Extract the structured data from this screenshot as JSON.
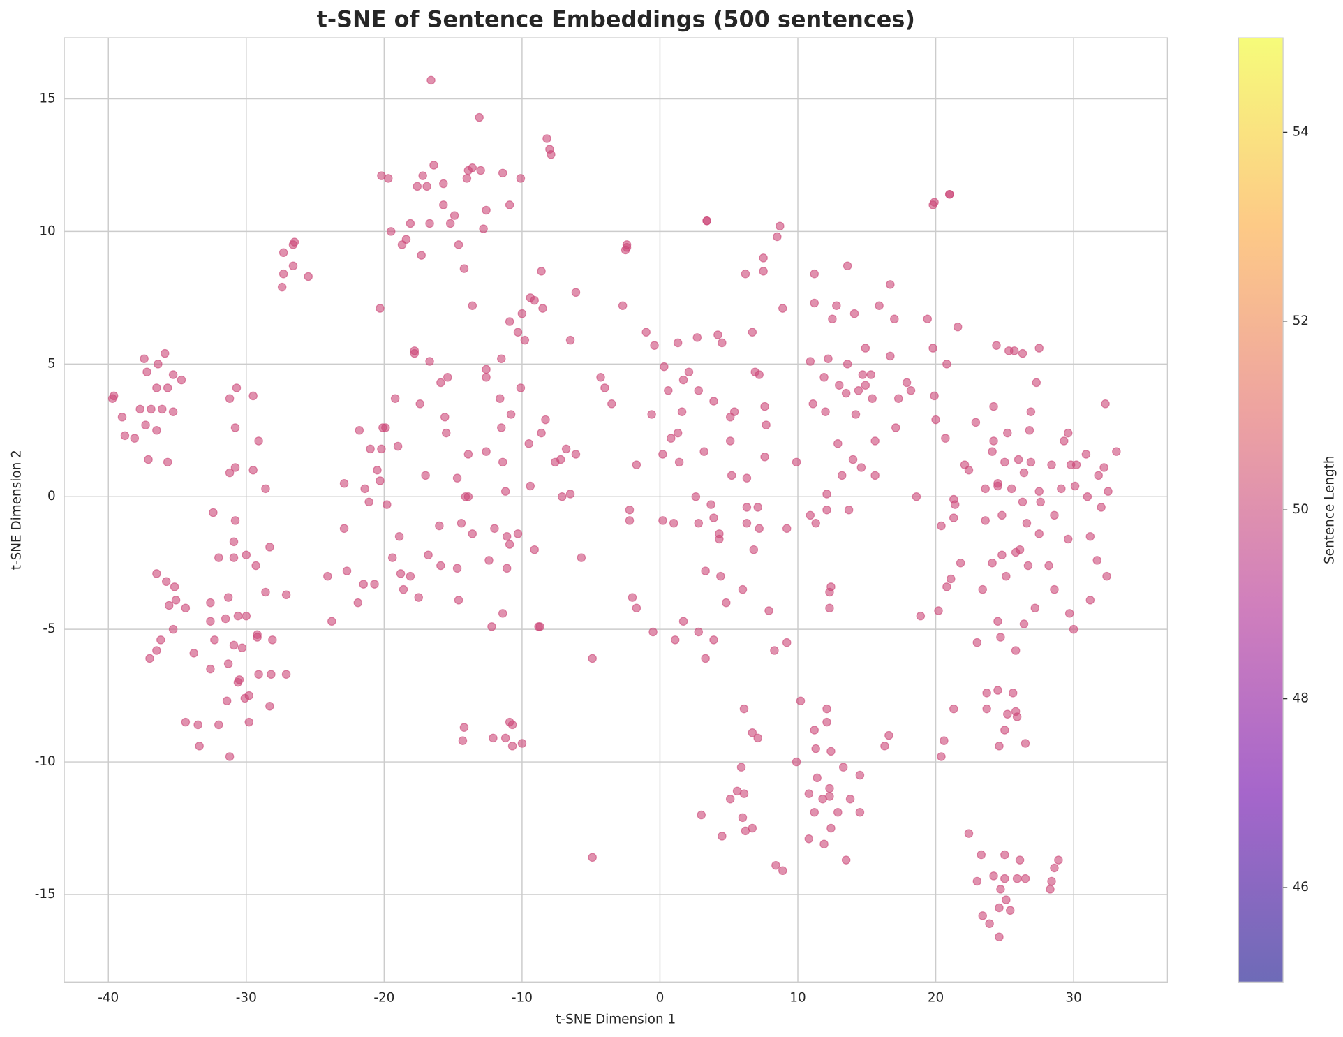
{
  "chart_data": {
    "type": "scatter",
    "title": "t-SNE of Sentence Embeddings (500 sentences)",
    "x_label": "t-SNE Dimension 1",
    "y_label": "t-SNE Dimension 2",
    "color": "#cc4778",
    "alpha": 0.6,
    "grid": true,
    "xlim": [
      -43.2,
      36.8
    ],
    "ylim": [
      -18.3,
      17.3
    ],
    "xticks": [
      -40,
      -30,
      -20,
      -10,
      0,
      10,
      20,
      30
    ],
    "yticks": [
      -15,
      -10,
      -5,
      0,
      5,
      10,
      15
    ],
    "colorbar": {
      "label": "Sentence Length",
      "lim": [
        45,
        55
      ],
      "ticks": [
        46,
        48,
        50,
        52,
        54
      ],
      "colormap": [
        "#0d0887",
        "#6a00a8",
        "#b12a90",
        "#e16462",
        "#fca636",
        "#f0f921"
      ],
      "alpha": 0.6
    },
    "x": [
      -39.6,
      -39.7,
      -39,
      -38.8,
      -38.1,
      -37.7,
      -37.4,
      -37.3,
      -37.2,
      -37.1,
      -36.9,
      -36.5,
      -36.5,
      -36.4,
      -36.1,
      -35.9,
      -35.7,
      -35.7,
      -35.3,
      -35.3,
      -34.7,
      -36.5,
      -36.5,
      -36.2,
      -35.8,
      -35.6,
      -35.2,
      -35.1,
      -35.3,
      -37,
      -34.4,
      -34.4,
      -33.8,
      -33.5,
      -33.4,
      -32.6,
      -32.6,
      -32.6,
      -32.4,
      -32.3,
      -32,
      -32,
      -31.5,
      -31.3,
      -31.3,
      -31.4,
      -31.2,
      -30.9,
      -30.9,
      -30.8,
      -30.9,
      -30.6,
      -30.6,
      -30.5,
      -30.3,
      -30.1,
      -30,
      -30,
      -29.8,
      -29.8,
      -29.3,
      -29.2,
      -29.2,
      -29.1,
      -28.6,
      -28.3,
      -28.3,
      -28.2,
      -28.1,
      -27.1,
      -27.1,
      -31.2,
      -30.7,
      -30.8,
      -31.2,
      -30.8,
      -29.5,
      -29.5,
      -29.1,
      -28.6,
      -27.4,
      -27.3,
      -27.3,
      -26.6,
      -26.6,
      -26.5,
      -25.5,
      -24.1,
      -23.8,
      -22.9,
      -22.9,
      -22.7,
      -21.9,
      -21.8,
      -21.5,
      -21.4,
      -21.1,
      -21,
      -20.7,
      -20.5,
      -20.3,
      -20.2,
      -20.1,
      -19.9,
      -19.8,
      -19.4,
      -19.2,
      -19,
      -18.9,
      -18.8,
      -18.6,
      -18.1,
      -17.8,
      -17.8,
      -17.5,
      -17.4,
      -17,
      -16.8,
      -16.7,
      -16,
      -15.9,
      -15.9,
      -15.6,
      -15.5,
      -15.4,
      -14.7,
      -14.7,
      -14.6,
      -14.4,
      -14.1,
      -13.9,
      -13.9,
      -13.6,
      -12.6,
      -12.6,
      -12.6,
      -12.4,
      -12.2,
      -12,
      -11.6,
      -11.5,
      -11.5,
      -11.4,
      -11.4,
      -11.2,
      -11.1,
      -11.1,
      -10.9,
      -10.8,
      -10.3,
      -10.1,
      -20.3,
      -20.2,
      -19.7,
      -19.5,
      -18.7,
      -18.4,
      -18.1,
      -17.6,
      -17.3,
      -17.2,
      -16.9,
      -16.7,
      -16.6,
      -16.4,
      -15.7,
      -15.7,
      -15.2,
      -14.9,
      -14.6,
      -14.2,
      -14,
      -13.9,
      -13.6,
      -13.6,
      -13.1,
      -13,
      -12.8,
      -12.6,
      -11.4,
      -10.9,
      -10.1,
      -10.9,
      -10.3,
      -10,
      -9.8,
      -9.4,
      -9.1,
      -8.6,
      -8.5,
      -8.2,
      -8,
      -7.9,
      -6.1,
      -6.5,
      -9.5,
      -9.4,
      -9.1,
      -8.6,
      -8.3,
      -7.6,
      -7.2,
      -7.1,
      -6.8,
      -6.5,
      -6.1,
      -5.7,
      -8.8,
      -8.7,
      -4.9,
      -4.3,
      -4,
      -3.5,
      -14.3,
      -14.2,
      -12.1,
      -11.2,
      -10.9,
      -10.7,
      -10.7,
      -10,
      -4.9,
      -2.7,
      -2.5,
      -2.4,
      -2.4,
      -2.2,
      -2.2,
      -2,
      -1.7,
      -1.7,
      -1,
      -0.6,
      -0.5,
      -0.4,
      0.2,
      0.2,
      0.3,
      0.6,
      0.8,
      1,
      1.1,
      1.3,
      1.3,
      1.4,
      1.6,
      1.7,
      1.7,
      2.1,
      2.6,
      2.7,
      2.8,
      2.8,
      2.8,
      3.2,
      3.3,
      3.3,
      3.4,
      3.4,
      3.7,
      3.9,
      3.9,
      3.9,
      4.2,
      4.3,
      4.3,
      4.4,
      4.5,
      4.8,
      5.1,
      5.1,
      5.2,
      5.4,
      6,
      6.2,
      6.3,
      6.3,
      6.3,
      6.7,
      6.8,
      6.9,
      7.1,
      7.2,
      7.2,
      7.5,
      7.5,
      7.6,
      7.6,
      7.7,
      7.9,
      8.3,
      8.5,
      8.7,
      8.9,
      9.2,
      9.2,
      9.9,
      3,
      4.5,
      5.1,
      5.6,
      5.9,
      6,
      6.1,
      6.1,
      6.2,
      6.7,
      6.7,
      7.1,
      8.4,
      8.9,
      9.9,
      10.2,
      10.8,
      10.8,
      11.2,
      11.2,
      11.3,
      11.4,
      11.8,
      11.9,
      12.1,
      12.1,
      12.3,
      12.3,
      12.4,
      12.4,
      12.9,
      13.3,
      13.5,
      13.8,
      14.5,
      14.5,
      16.3,
      16.6,
      10.9,
      10.9,
      11.1,
      11.2,
      11.2,
      11.3,
      11.9,
      12,
      12.1,
      12.1,
      12.2,
      12.3,
      12.3,
      12.4,
      12.5,
      12.8,
      12.9,
      13,
      13.2,
      13.5,
      13.6,
      13.6,
      13.7,
      14,
      14.1,
      14.2,
      14.4,
      14.6,
      14.7,
      14.9,
      14.9,
      15.3,
      15.4,
      15.6,
      15.6,
      15.9,
      16.7,
      16.7,
      17,
      17.1,
      17.3,
      17.9,
      18.2,
      18.6,
      18.9,
      19.4,
      19.8,
      19.9,
      21,
      21,
      19.8,
      19.9,
      20,
      20.2,
      20.4,
      20.4,
      20.6,
      20.7,
      20.8,
      20.8,
      21.1,
      21.3,
      21.3,
      21.3,
      21.4,
      21.6,
      21.8,
      22.1,
      22.4,
      22.9,
      23,
      23.4,
      23.6,
      23.6,
      23.7,
      23.7,
      24.1,
      24.1,
      24.2,
      24.2,
      24.4,
      24.5,
      24.5,
      24.5,
      24.5,
      24.6,
      24.7,
      24.8,
      24.8,
      25,
      25,
      25.1,
      25.2,
      25.2,
      25.3,
      25.5,
      25.6,
      25.7,
      25.8,
      25.8,
      25.8,
      25.9,
      26,
      26.1,
      26.3,
      26.3,
      26.4,
      26.4,
      26.5,
      26.6,
      26.7,
      26.8,
      26.9,
      26.9,
      27.2,
      27.3,
      27.5,
      27.5,
      27.5,
      27.6,
      28.2,
      28.4,
      28.6,
      28.6,
      29.1,
      29.3,
      29.6,
      29.6,
      29.7,
      29.8,
      30,
      30.1,
      30.2,
      30.9,
      31,
      31.2,
      31.2,
      31.7,
      31.8,
      32,
      32.2,
      32.3,
      32.4,
      32.5,
      33.1,
      22.4,
      23,
      23.3,
      23.4,
      23.9,
      24.2,
      24.6,
      24.7,
      24.6,
      25,
      25,
      25.1,
      25.4,
      25.9,
      26.1,
      26.5,
      28.3,
      28.4,
      28.6,
      28.9
    ],
    "values": [
      3.8,
      3.7,
      3.0,
      2.3,
      2.2,
      3.3,
      5.2,
      2.7,
      4.7,
      1.4,
      3.3,
      2.5,
      4.1,
      5.0,
      3.3,
      5.4,
      4.1,
      1.3,
      4.6,
      3.2,
      4.4,
      -2.9,
      -5.8,
      -5.4,
      -3.2,
      -4.1,
      -3.4,
      -3.9,
      -5.0,
      -6.1,
      -4.2,
      -8.5,
      -5.9,
      -8.6,
      -9.4,
      -4.0,
      -4.7,
      -6.5,
      -0.6,
      -5.4,
      -2.3,
      -8.6,
      -4.6,
      -3.8,
      -6.3,
      -7.7,
      -9.8,
      -2.3,
      -1.7,
      -0.9,
      -5.6,
      -4.5,
      -7.0,
      -6.9,
      -5.7,
      -7.6,
      -2.2,
      -4.5,
      -7.5,
      -8.5,
      -2.6,
      -5.2,
      -5.3,
      -6.7,
      -3.6,
      -1.9,
      -7.9,
      -6.7,
      -5.4,
      -6.7,
      -3.7,
      3.7,
      4.1,
      2.6,
      0.9,
      1.1,
      3.8,
      1.0,
      2.1,
      0.3,
      7.9,
      8.4,
      9.2,
      8.7,
      9.5,
      9.6,
      8.3,
      -3.0,
      -4.7,
      0.5,
      -1.2,
      -2.8,
      -4.0,
      2.5,
      -3.3,
      0.3,
      -0.2,
      1.8,
      -3.3,
      1.0,
      0.6,
      1.8,
      2.6,
      2.6,
      -0.3,
      -2.3,
      3.7,
      1.9,
      -1.5,
      -2.9,
      -3.5,
      -3.0,
      5.5,
      5.4,
      -3.8,
      3.5,
      0.8,
      -2.2,
      5.1,
      -1.1,
      -2.6,
      4.3,
      3.0,
      2.4,
      4.5,
      0.7,
      -2.7,
      -3.9,
      -1.0,
      0.0,
      1.6,
      0.0,
      -1.4,
      1.7,
      4.5,
      4.8,
      -2.4,
      -4.9,
      -1.2,
      3.7,
      2.6,
      5.2,
      1.3,
      -4.4,
      0.2,
      -1.5,
      -2.7,
      -1.8,
      3.1,
      -1.4,
      4.1,
      7.1,
      12.1,
      12.0,
      10.0,
      9.5,
      9.7,
      10.3,
      11.7,
      9.1,
      12.1,
      11.7,
      10.3,
      15.7,
      12.5,
      11.0,
      11.8,
      10.3,
      10.6,
      9.5,
      8.6,
      12.0,
      12.3,
      12.4,
      7.2,
      14.3,
      12.3,
      10.1,
      10.8,
      12.2,
      11.0,
      12.0,
      6.6,
      6.2,
      6.9,
      5.9,
      7.5,
      7.4,
      8.5,
      7.1,
      13.5,
      13.1,
      12.9,
      7.7,
      5.9,
      2.0,
      0.4,
      -2.0,
      2.4,
      2.9,
      1.3,
      1.4,
      0.0,
      1.8,
      0.1,
      1.6,
      -2.3,
      -4.9,
      -4.9,
      -6.1,
      4.5,
      4.1,
      3.5,
      -9.2,
      -8.7,
      -9.1,
      -9.1,
      -8.5,
      -8.6,
      -9.4,
      -9.3,
      -13.6,
      7.2,
      9.3,
      9.4,
      9.5,
      -0.9,
      -0.5,
      -3.8,
      1.2,
      -4.2,
      6.2,
      3.1,
      -5.1,
      5.7,
      -0.9,
      1.6,
      4.9,
      4.0,
      2.2,
      -1.0,
      -5.4,
      2.4,
      5.8,
      1.3,
      3.2,
      4.4,
      -4.7,
      4.7,
      0.0,
      6.0,
      4.0,
      -1.0,
      -5.1,
      1.7,
      -2.8,
      -6.1,
      10.4,
      10.4,
      -0.3,
      3.6,
      -0.8,
      -5.4,
      6.1,
      -1.6,
      -1.4,
      -3.0,
      5.8,
      -4.0,
      2.1,
      3.0,
      0.8,
      3.2,
      -3.5,
      8.4,
      0.7,
      -0.4,
      -1.0,
      6.2,
      -2.0,
      4.7,
      -0.4,
      4.6,
      -1.2,
      9.0,
      8.5,
      3.4,
      1.5,
      2.7,
      -4.3,
      -5.8,
      9.8,
      10.2,
      7.1,
      -5.5,
      -1.2,
      1.3,
      -12.0,
      -12.8,
      -11.4,
      -11.1,
      -10.2,
      -12.1,
      -8.0,
      -11.2,
      -12.6,
      -8.9,
      -12.5,
      -9.1,
      -13.9,
      -14.1,
      -10.0,
      -7.7,
      -11.2,
      -12.9,
      -8.8,
      -11.9,
      -9.5,
      -10.6,
      -11.4,
      -13.1,
      -8.0,
      -8.5,
      -11.0,
      -11.3,
      -9.6,
      -12.5,
      -11.9,
      -10.2,
      -13.7,
      -11.4,
      -10.5,
      -11.9,
      -9.4,
      -9.0,
      5.1,
      -0.7,
      3.5,
      7.3,
      8.4,
      -1.0,
      4.5,
      3.2,
      0.1,
      -0.5,
      5.2,
      -3.6,
      -4.2,
      -3.4,
      6.7,
      7.2,
      2.0,
      4.2,
      0.8,
      3.9,
      8.7,
      5.0,
      -0.5,
      1.4,
      6.9,
      3.1,
      4.0,
      1.1,
      4.6,
      4.2,
      5.6,
      4.6,
      3.7,
      2.1,
      0.8,
      7.2,
      5.3,
      8.0,
      6.7,
      2.6,
      3.7,
      4.3,
      4.0,
      0.0,
      -4.5,
      6.7,
      11.0,
      11.1,
      11.4,
      11.4,
      5.6,
      3.8,
      2.9,
      -4.3,
      -1.1,
      -9.8,
      -9.2,
      2.2,
      5.0,
      -3.4,
      -3.1,
      -0.1,
      -0.8,
      -8.0,
      -0.3,
      6.4,
      -2.5,
      1.2,
      1.0,
      2.8,
      -5.5,
      -3.5,
      -0.9,
      0.3,
      -7.4,
      -8.0,
      1.7,
      -2.5,
      2.1,
      3.4,
      5.7,
      0.4,
      0.5,
      -7.3,
      -4.7,
      -9.4,
      -5.3,
      -2.2,
      -0.7,
      1.3,
      -8.8,
      -3.0,
      -8.2,
      2.4,
      5.5,
      0.3,
      -7.4,
      5.5,
      -2.1,
      -8.1,
      -5.8,
      -8.3,
      1.4,
      -2.0,
      -0.2,
      5.4,
      0.9,
      -4.8,
      -9.3,
      -1.0,
      -2.6,
      2.5,
      3.2,
      1.3,
      -4.2,
      4.3,
      -1.4,
      0.2,
      5.6,
      -0.2,
      -2.6,
      1.2,
      -3.5,
      -0.7,
      0.3,
      2.1,
      2.4,
      -1.6,
      -4.4,
      1.2,
      -5.0,
      0.4,
      1.2,
      1.6,
      0.0,
      -1.5,
      -3.9,
      -2.4,
      0.8,
      -0.4,
      1.1,
      3.5,
      -3.0,
      0.2,
      1.7,
      -12.7,
      -14.5,
      -13.5,
      -15.8,
      -16.1,
      -14.3,
      -15.5,
      -14.8,
      -16.6,
      -14.4,
      -13.5,
      -15.2,
      -15.6,
      -14.4,
      -13.7,
      -14.4,
      -14.8,
      -14.5,
      -14.0,
      -13.7
    ]
  }
}
